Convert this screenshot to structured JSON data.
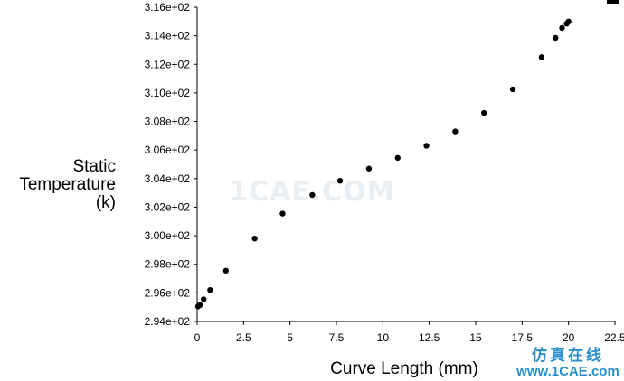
{
  "chart_data": {
    "type": "scatter",
    "title": "",
    "xlabel": "Curve Length (mm)",
    "ylabel_lines": [
      "Static",
      "Temperature",
      "(k)"
    ],
    "xlim": [
      0,
      22.5
    ],
    "ylim": [
      294.0,
      316.0
    ],
    "x_ticks": [
      0,
      2.5,
      5,
      7.5,
      10,
      12.5,
      15,
      17.5,
      20,
      22.5
    ],
    "x_tick_labels": [
      "0",
      "2.5",
      "5",
      "7.5",
      "10",
      "12.5",
      "15",
      "17.5",
      "20",
      "22.5"
    ],
    "y_ticks": [
      294,
      296,
      298,
      300,
      302,
      304,
      306,
      308,
      310,
      312,
      314,
      316
    ],
    "y_tick_labels": [
      "2.94e+02",
      "2.96e+02",
      "2.98e+02",
      "3.00e+02",
      "3.02e+02",
      "3.04e+02",
      "3.06e+02",
      "3.08e+02",
      "3.10e+02",
      "3.12e+02",
      "3.14e+02",
      "3.16e+02"
    ],
    "grid": false,
    "marker_color": "#000000",
    "points": [
      {
        "x": 0.05,
        "y": 295.05
      },
      {
        "x": 0.15,
        "y": 295.15
      },
      {
        "x": 0.35,
        "y": 295.55
      },
      {
        "x": 0.7,
        "y": 296.2
      },
      {
        "x": 1.55,
        "y": 297.55
      },
      {
        "x": 3.1,
        "y": 299.8
      },
      {
        "x": 4.6,
        "y": 301.55
      },
      {
        "x": 6.2,
        "y": 302.85
      },
      {
        "x": 7.7,
        "y": 303.85
      },
      {
        "x": 9.25,
        "y": 304.7
      },
      {
        "x": 10.8,
        "y": 305.45
      },
      {
        "x": 12.35,
        "y": 306.3
      },
      {
        "x": 13.9,
        "y": 307.3
      },
      {
        "x": 15.45,
        "y": 308.6
      },
      {
        "x": 17.0,
        "y": 310.25
      },
      {
        "x": 18.55,
        "y": 312.5
      },
      {
        "x": 19.3,
        "y": 313.85
      },
      {
        "x": 19.65,
        "y": 314.55
      },
      {
        "x": 19.9,
        "y": 314.85
      },
      {
        "x": 20.0,
        "y": 315.0
      }
    ]
  },
  "watermark": {
    "center_text": "1CAE.COM",
    "brand_cn": "仿真在线",
    "brand_url": "www.1CAE.com",
    "brand_color": "#2a8fc9"
  }
}
